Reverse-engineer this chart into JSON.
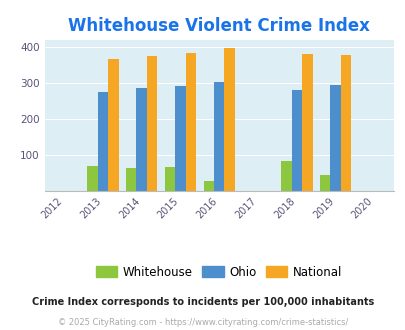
{
  "title": "Whitehouse Violent Crime Index",
  "title_color": "#1a73e8",
  "all_years": [
    2012,
    2013,
    2014,
    2015,
    2016,
    2017,
    2018,
    2019,
    2020
  ],
  "data_years": [
    2013,
    2014,
    2015,
    2016,
    2018,
    2019
  ],
  "whitehouse": [
    70,
    65,
    67,
    28,
    83,
    44
  ],
  "ohio": [
    275,
    286,
    291,
    302,
    281,
    294
  ],
  "national": [
    367,
    376,
    384,
    397,
    381,
    377
  ],
  "whitehouse_color": "#8dc63f",
  "ohio_color": "#4d8fcc",
  "national_color": "#f5a623",
  "bg_color": "#deeef5",
  "ylim": [
    0,
    420
  ],
  "yticks": [
    0,
    100,
    200,
    300,
    400
  ],
  "xlim": [
    2011.5,
    2020.5
  ],
  "bar_width": 0.27,
  "footnote1": "Crime Index corresponds to incidents per 100,000 inhabitants",
  "footnote2": "© 2025 CityRating.com - https://www.cityrating.com/crime-statistics/",
  "footnote1_color": "#222222",
  "footnote2_color": "#aaaaaa",
  "legend_labels": [
    "Whitehouse",
    "Ohio",
    "National"
  ]
}
